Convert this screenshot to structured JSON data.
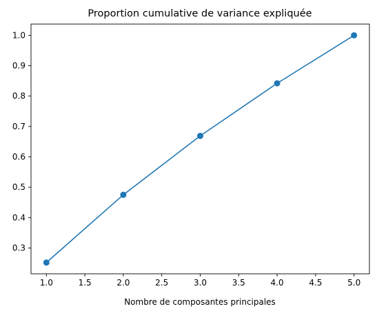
{
  "chart_data": {
    "type": "line",
    "title": "Proportion cumulative de variance expliquée",
    "xlabel": "Nombre de composantes principales",
    "ylabel": "",
    "x": [
      1,
      2,
      3,
      4,
      5
    ],
    "series": [
      {
        "values": [
          0.252,
          0.475,
          0.669,
          0.842,
          1.0
        ],
        "color": "#1f77b4",
        "marker": "circle"
      }
    ],
    "xlim": [
      0.8,
      5.2
    ],
    "ylim": [
      0.215,
      1.037
    ],
    "xticks": [
      1.0,
      1.5,
      2.0,
      2.5,
      3.0,
      3.5,
      4.0,
      4.5,
      5.0
    ],
    "xtick_labels": [
      "1.0",
      "1.5",
      "2.0",
      "2.5",
      "3.0",
      "3.5",
      "4.0",
      "4.5",
      "5.0"
    ],
    "yticks": [
      0.3,
      0.4,
      0.5,
      0.6,
      0.7,
      0.8,
      0.9,
      1.0
    ],
    "ytick_labels": [
      "0.3",
      "0.4",
      "0.5",
      "0.6",
      "0.7",
      "0.8",
      "0.9",
      "1.0"
    ],
    "grid": false,
    "legend": false
  }
}
